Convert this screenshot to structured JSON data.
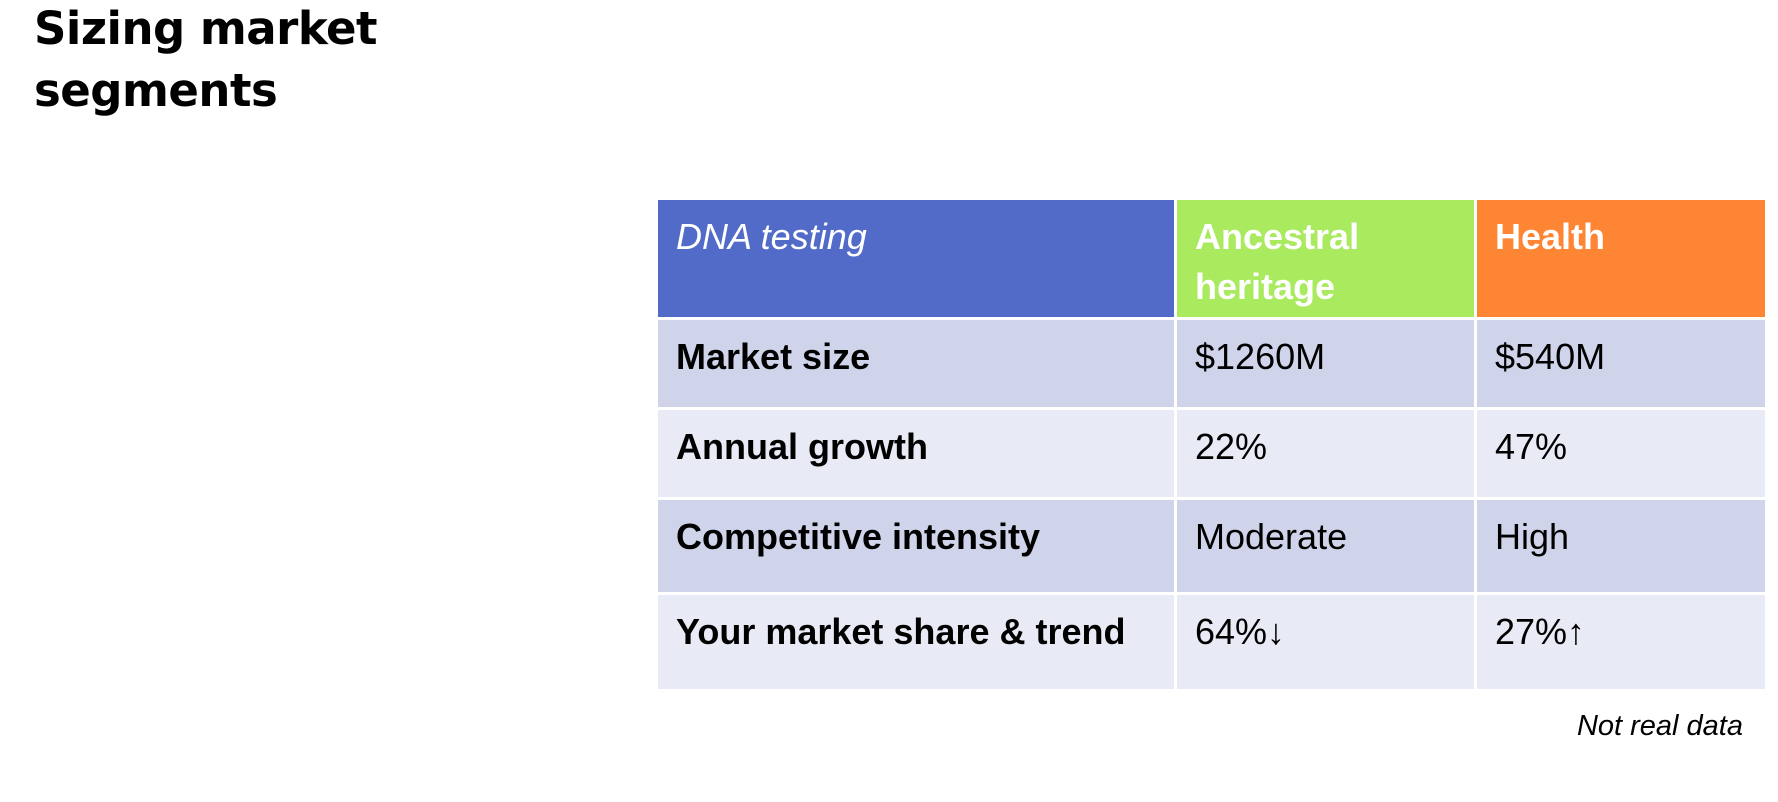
{
  "title": "Sizing market segments",
  "table": {
    "header": {
      "label": "DNA testing",
      "col_a": "Ancestral heritage",
      "col_b": "Health"
    },
    "rows": [
      {
        "label": "Market size",
        "a": "$1260M",
        "b": "$540M"
      },
      {
        "label": "Annual growth",
        "a": "22%",
        "b": "47%"
      },
      {
        "label": "Competitive intensity",
        "a": "Moderate",
        "b": "High"
      },
      {
        "label": "Your market share & trend",
        "a": "64%↓",
        "b": "27%↑"
      }
    ]
  },
  "footnote": "Not real data",
  "colors": {
    "header_label_bg": "#526bc8",
    "header_a_bg": "#a9ea5f",
    "header_b_bg": "#fe8534",
    "row_dark_bg": "#cfd4ea",
    "row_light_bg": "#e8ebf5"
  }
}
